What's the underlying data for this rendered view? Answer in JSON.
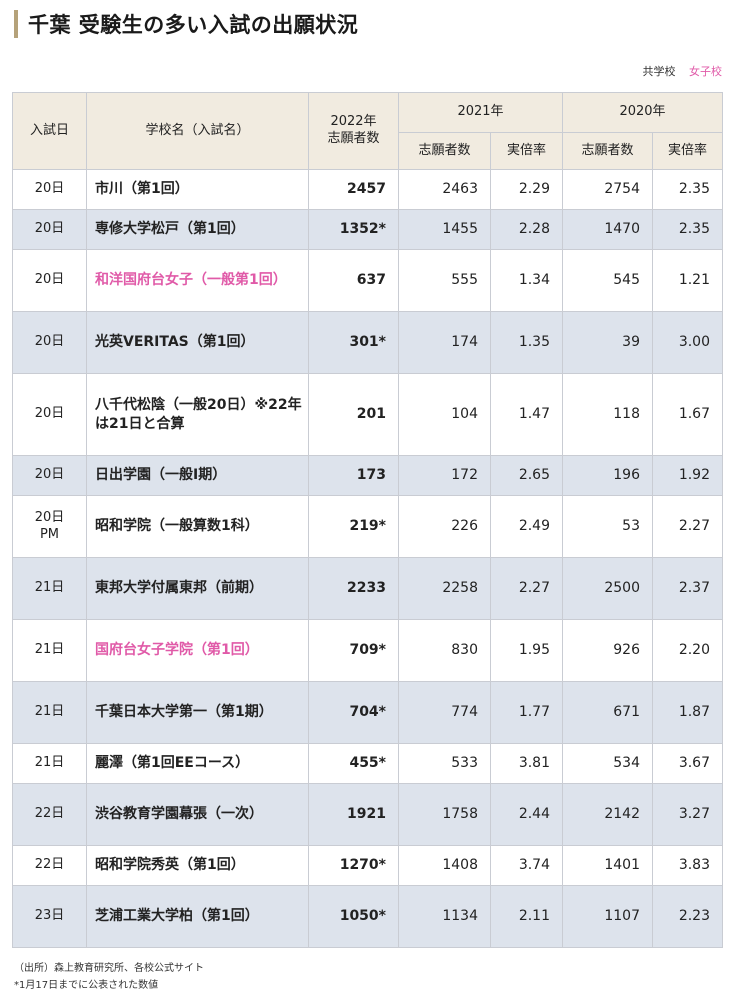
{
  "title": "千葉 受験生の多い入試の出願状況",
  "legend": {
    "coed": "共学校",
    "girls": "女子校"
  },
  "colors": {
    "accent": "#b5a27a",
    "girls": "#e05aa8",
    "header_bg": "#f1ebe0",
    "row_shade": "#dde3ec"
  },
  "headers": {
    "date": "入試日",
    "school": "学校名（入試名）",
    "y2022_line1": "2022年",
    "y2022_line2": "志願者数",
    "y2021": "2021年",
    "y2020": "2020年",
    "applicants": "志願者数",
    "ratio": "実倍率"
  },
  "rows": [
    {
      "date": "20日",
      "date2": "",
      "school": "市川（第1回）",
      "girls": false,
      "a2022": "2457",
      "a2021": "2463",
      "r2021": "2.29",
      "a2020": "2754",
      "r2020": "2.35"
    },
    {
      "date": "20日",
      "date2": "",
      "school": "専修大学松戸（第1回）",
      "girls": false,
      "a2022": "1352*",
      "a2021": "1455",
      "r2021": "2.28",
      "a2020": "1470",
      "r2020": "2.35"
    },
    {
      "date": "20日",
      "date2": "",
      "school": "和洋国府台女子（一般第1回）",
      "girls": true,
      "a2022": "637",
      "a2021": "555",
      "r2021": "1.34",
      "a2020": "545",
      "r2020": "1.21"
    },
    {
      "date": "20日",
      "date2": "",
      "school": "光英VERITAS（第1回）",
      "girls": false,
      "a2022": "301*",
      "a2021": "174",
      "r2021": "1.35",
      "a2020": "39",
      "r2020": "3.00"
    },
    {
      "date": "20日",
      "date2": "",
      "school": "八千代松陰（一般20日）※22年は21日と合算",
      "girls": false,
      "a2022": "201",
      "a2021": "104",
      "r2021": "1.47",
      "a2020": "118",
      "r2020": "1.67"
    },
    {
      "date": "20日",
      "date2": "",
      "school": "日出学園（一般Ⅰ期）",
      "girls": false,
      "a2022": "173",
      "a2021": "172",
      "r2021": "2.65",
      "a2020": "196",
      "r2020": "1.92"
    },
    {
      "date": "20日",
      "date2": "PM",
      "school": "昭和学院（一般算数1科）",
      "girls": false,
      "a2022": "219*",
      "a2021": "226",
      "r2021": "2.49",
      "a2020": "53",
      "r2020": "2.27"
    },
    {
      "date": "21日",
      "date2": "",
      "school": "東邦大学付属東邦（前期）",
      "girls": false,
      "a2022": "2233",
      "a2021": "2258",
      "r2021": "2.27",
      "a2020": "2500",
      "r2020": "2.37"
    },
    {
      "date": "21日",
      "date2": "",
      "school": "国府台女子学院（第1回）",
      "girls": true,
      "a2022": "709*",
      "a2021": "830",
      "r2021": "1.95",
      "a2020": "926",
      "r2020": "2.20"
    },
    {
      "date": "21日",
      "date2": "",
      "school": "千葉日本大学第一（第1期）",
      "girls": false,
      "a2022": "704*",
      "a2021": "774",
      "r2021": "1.77",
      "a2020": "671",
      "r2020": "1.87"
    },
    {
      "date": "21日",
      "date2": "",
      "school": "麗澤（第1回EEコース）",
      "girls": false,
      "a2022": "455*",
      "a2021": "533",
      "r2021": "3.81",
      "a2020": "534",
      "r2020": "3.67"
    },
    {
      "date": "22日",
      "date2": "",
      "school": "渋谷教育学園幕張（一次）",
      "girls": false,
      "a2022": "1921",
      "a2021": "1758",
      "r2021": "2.44",
      "a2020": "2142",
      "r2020": "3.27"
    },
    {
      "date": "22日",
      "date2": "",
      "school": "昭和学院秀英（第1回）",
      "girls": false,
      "a2022": "1270*",
      "a2021": "1408",
      "r2021": "3.74",
      "a2020": "1401",
      "r2020": "3.83"
    },
    {
      "date": "23日",
      "date2": "",
      "school": "芝浦工業大学柏（第1回）",
      "girls": false,
      "a2022": "1050*",
      "a2021": "1134",
      "r2021": "2.11",
      "a2020": "1107",
      "r2020": "2.23"
    }
  ],
  "footer": {
    "source": "（出所）森上教育研究所、各校公式サイト",
    "note": "*1月17日までに公表された数値"
  }
}
